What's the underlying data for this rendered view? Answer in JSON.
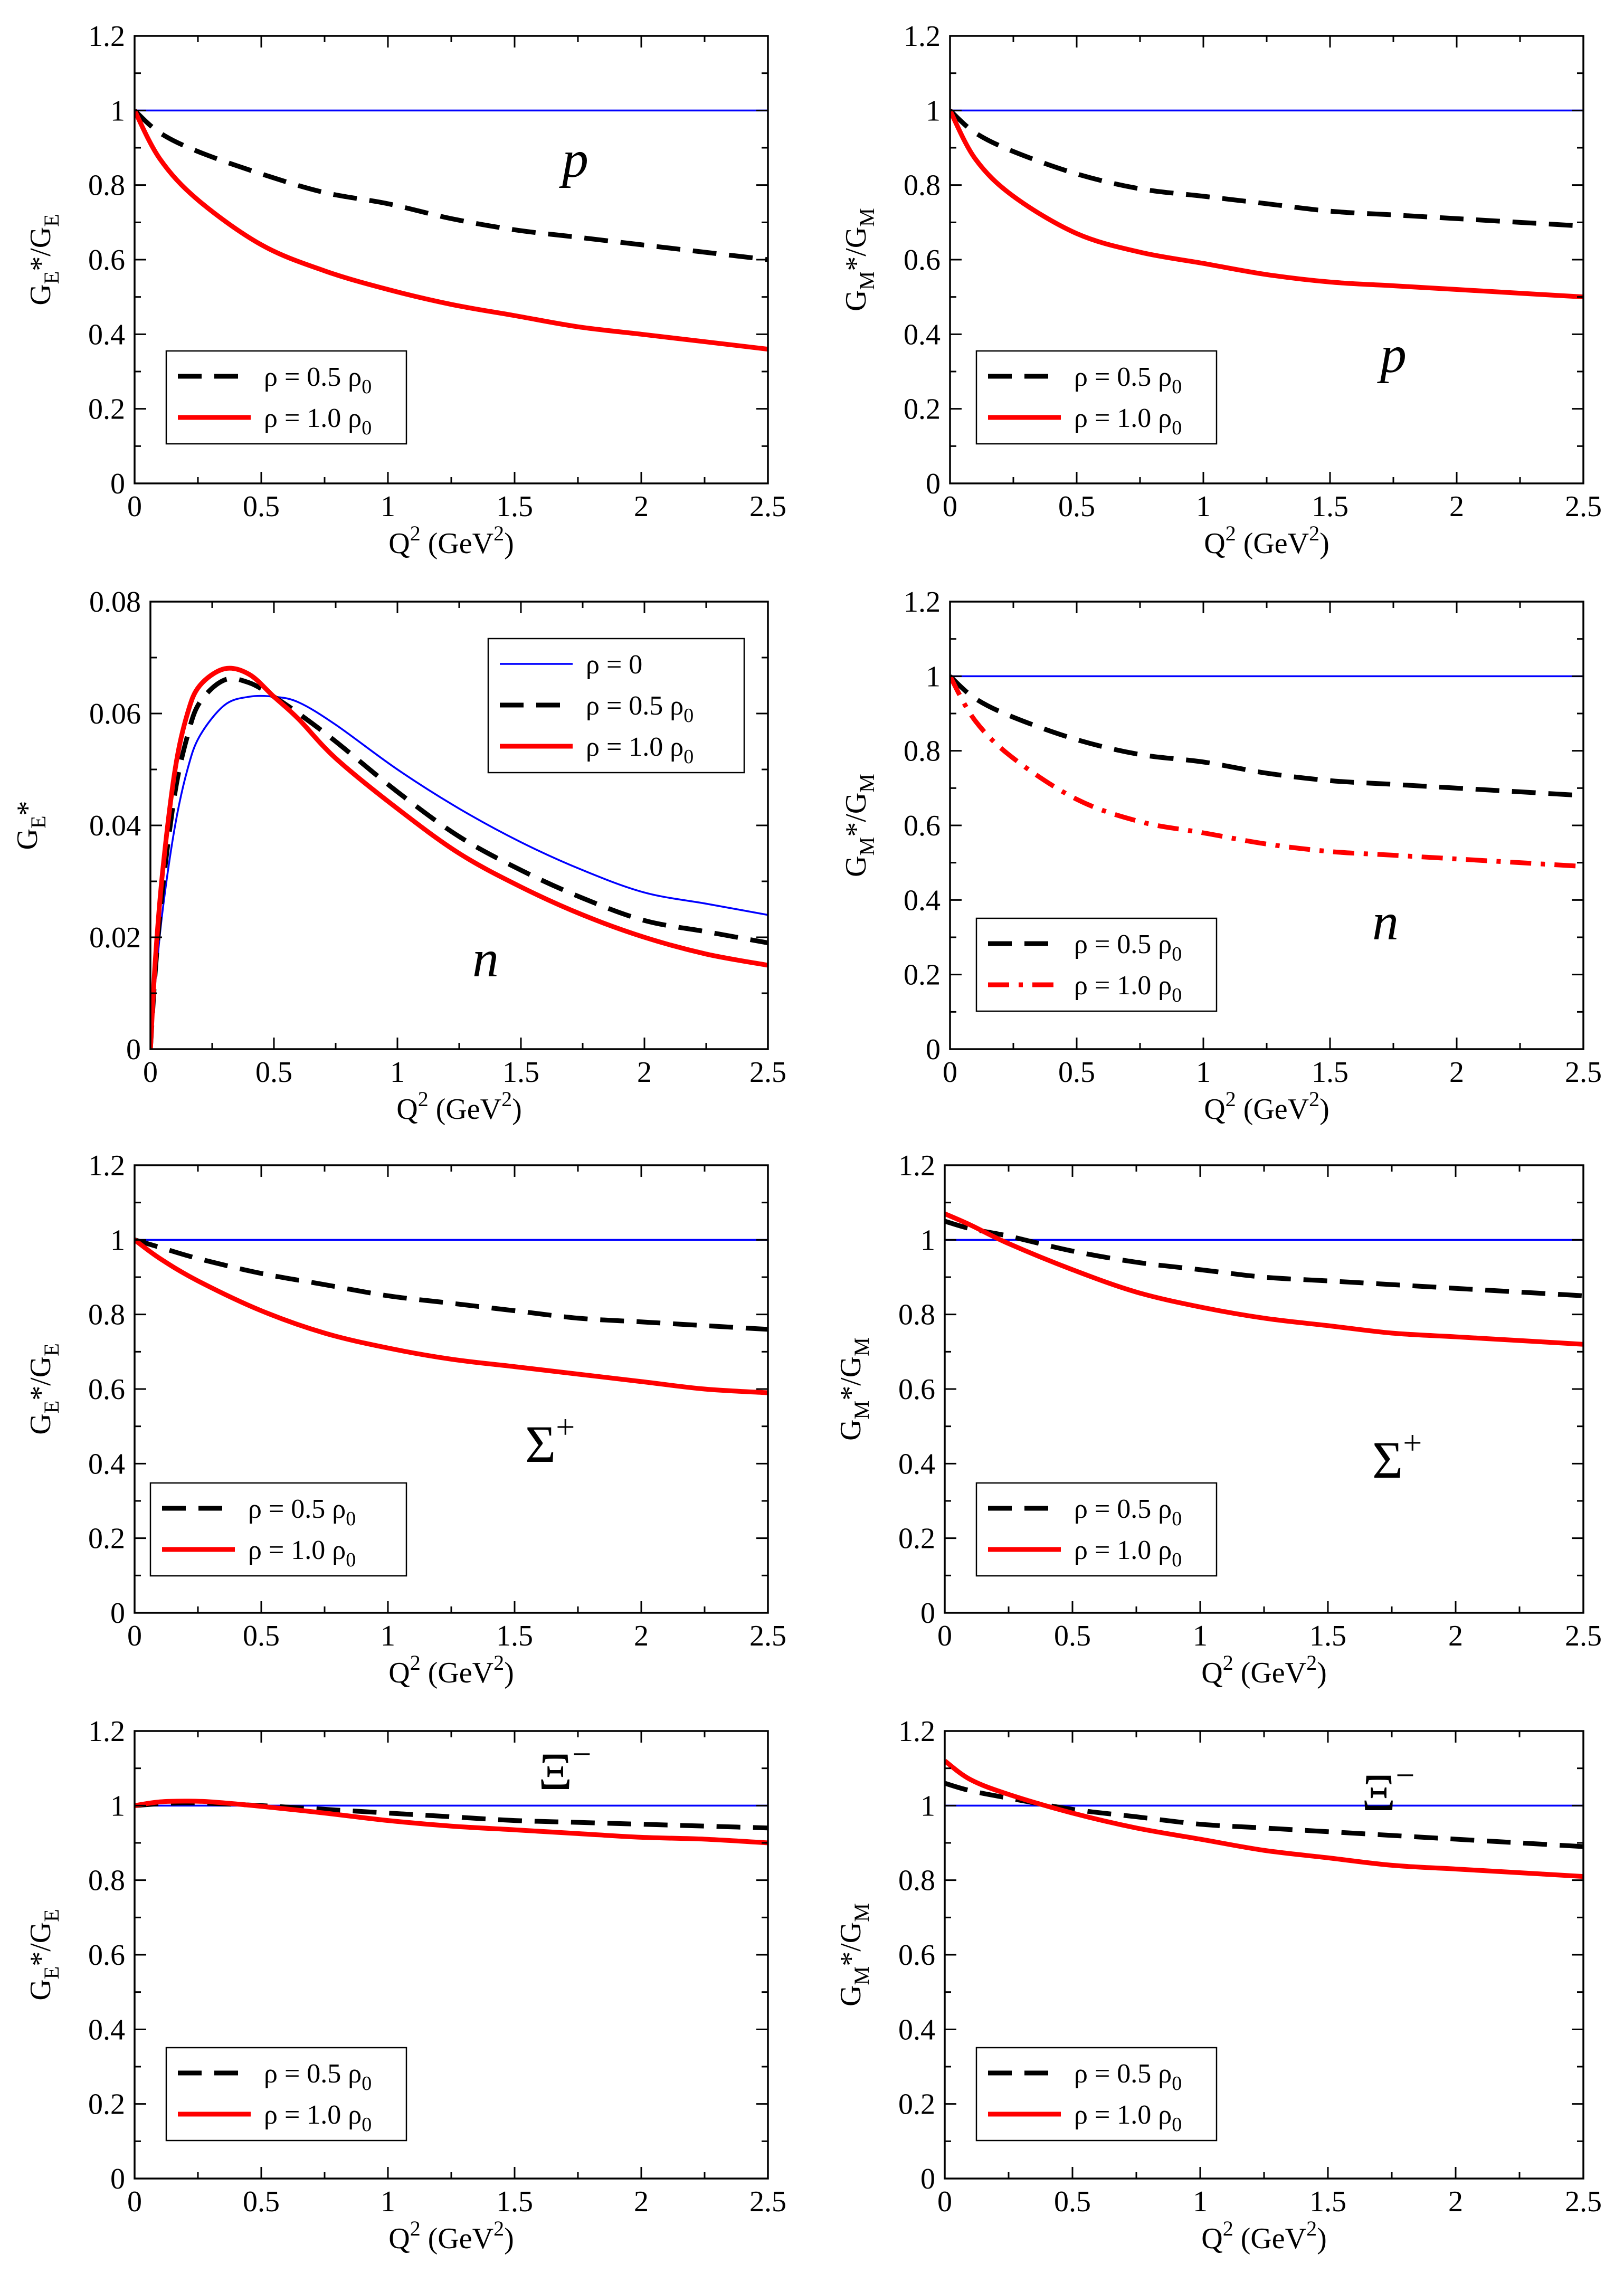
{
  "colors": {
    "blue": "#0000ff",
    "black": "#000000",
    "red": "#ff0000"
  },
  "chart_data": [
    {
      "type": "line",
      "panel": "p-GE",
      "ylabel": {
        "main": "G",
        "sub": "E",
        "mid": "*/G",
        "sub2": "E"
      },
      "xlabel": {
        "main": "Q",
        "sup": "2",
        "unit_open": " (GeV",
        "unit_sup": "2",
        "unit_close": ")"
      },
      "particle": {
        "text": "p",
        "sup": ""
      },
      "xlim": [
        0,
        2.5
      ],
      "ylim": [
        0,
        1.2
      ],
      "xticks": [
        "0",
        "0.5",
        "1",
        "1.5",
        "2",
        "2.5"
      ],
      "yticks": [
        "0",
        "0.2",
        "0.4",
        "0.6",
        "0.8",
        "1",
        "1.2"
      ],
      "legend": [
        {
          "label": "ρ = 0.5 ρ",
          "sub": "0",
          "series": 1
        },
        {
          "label": "ρ = 1.0 ρ",
          "sub": "0",
          "series": 2
        }
      ],
      "series": [
        {
          "style": "thin-blue",
          "x": [
            0,
            2.5
          ],
          "y": [
            1.0,
            1.0
          ]
        },
        {
          "style": "dashed-black",
          "x": [
            0,
            0.1,
            0.25,
            0.5,
            0.75,
            1.0,
            1.25,
            1.5,
            1.75,
            2.0,
            2.25,
            2.5
          ],
          "y": [
            1.0,
            0.94,
            0.89,
            0.83,
            0.78,
            0.75,
            0.71,
            0.68,
            0.66,
            0.64,
            0.62,
            0.6
          ]
        },
        {
          "style": "solid-red",
          "x": [
            0,
            0.1,
            0.25,
            0.5,
            0.75,
            1.0,
            1.25,
            1.5,
            1.75,
            2.0,
            2.25,
            2.5
          ],
          "y": [
            1.0,
            0.87,
            0.76,
            0.64,
            0.57,
            0.52,
            0.48,
            0.45,
            0.42,
            0.4,
            0.38,
            0.36
          ]
        }
      ]
    },
    {
      "type": "line",
      "panel": "p-GM",
      "ylabel": {
        "main": "G",
        "sub": "M",
        "mid": "*/G",
        "sub2": "M"
      },
      "xlabel": {
        "main": "Q",
        "sup": "2",
        "unit_open": " (GeV",
        "unit_sup": "2",
        "unit_close": ")"
      },
      "particle": {
        "text": "p",
        "sup": ""
      },
      "xlim": [
        0,
        2.5
      ],
      "ylim": [
        0,
        1.2
      ],
      "xticks": [
        "0",
        "0.5",
        "1",
        "1.5",
        "2",
        "2.5"
      ],
      "yticks": [
        "0",
        "0.2",
        "0.4",
        "0.6",
        "0.8",
        "1",
        "1.2"
      ],
      "legend": [
        {
          "label": "ρ = 0.5 ρ",
          "sub": "0",
          "series": 1
        },
        {
          "label": "ρ = 1.0 ρ",
          "sub": "0",
          "series": 2
        }
      ],
      "series": [
        {
          "style": "thin-blue",
          "x": [
            0,
            2.5
          ],
          "y": [
            1.0,
            1.0
          ]
        },
        {
          "style": "dashed-black",
          "x": [
            0,
            0.1,
            0.25,
            0.5,
            0.75,
            1.0,
            1.25,
            1.5,
            1.75,
            2.0,
            2.25,
            2.5
          ],
          "y": [
            1.0,
            0.94,
            0.89,
            0.83,
            0.79,
            0.77,
            0.75,
            0.73,
            0.72,
            0.71,
            0.7,
            0.69
          ]
        },
        {
          "style": "solid-red",
          "x": [
            0,
            0.1,
            0.25,
            0.5,
            0.75,
            1.0,
            1.25,
            1.5,
            1.75,
            2.0,
            2.25,
            2.5
          ],
          "y": [
            1.0,
            0.87,
            0.77,
            0.67,
            0.62,
            0.59,
            0.56,
            0.54,
            0.53,
            0.52,
            0.51,
            0.5
          ]
        }
      ]
    },
    {
      "type": "line",
      "panel": "n-GE",
      "ylabel": {
        "main": "G",
        "sub": "E",
        "mid": "*",
        "sub2": ""
      },
      "xlabel": {
        "main": "Q",
        "sup": "2",
        "unit_open": " (GeV",
        "unit_sup": "2",
        "unit_close": ")"
      },
      "particle": {
        "text": "n",
        "sup": ""
      },
      "xlim": [
        0,
        2.5
      ],
      "ylim": [
        0,
        0.08
      ],
      "xticks": [
        "0",
        "0.5",
        "1",
        "1.5",
        "2",
        "2.5"
      ],
      "yticks": [
        "0",
        "0.02",
        "0.04",
        "0.06",
        "0.08"
      ],
      "legend": [
        {
          "label": "ρ = 0",
          "sub": "",
          "series": 0
        },
        {
          "label": "ρ = 0.5 ρ",
          "sub": "0",
          "series": 1
        },
        {
          "label": "ρ = 1.0 ρ",
          "sub": "0",
          "series": 2
        }
      ],
      "series": [
        {
          "style": "thin-blue",
          "x": [
            0,
            0.02,
            0.05,
            0.1,
            0.15,
            0.2,
            0.3,
            0.4,
            0.5,
            0.6,
            0.75,
            1.0,
            1.25,
            1.5,
            1.75,
            2.0,
            2.25,
            2.5
          ],
          "y": [
            0,
            0.012,
            0.025,
            0.04,
            0.05,
            0.056,
            0.0615,
            0.063,
            0.063,
            0.062,
            0.058,
            0.05,
            0.043,
            0.037,
            0.032,
            0.028,
            0.026,
            0.024
          ]
        },
        {
          "style": "dashed-black",
          "x": [
            0,
            0.02,
            0.05,
            0.1,
            0.15,
            0.2,
            0.3,
            0.4,
            0.5,
            0.6,
            0.75,
            1.0,
            1.25,
            1.5,
            1.75,
            2.0,
            2.25,
            2.5
          ],
          "y": [
            0,
            0.014,
            0.029,
            0.046,
            0.056,
            0.062,
            0.066,
            0.0655,
            0.063,
            0.06,
            0.055,
            0.046,
            0.038,
            0.032,
            0.027,
            0.023,
            0.021,
            0.019
          ]
        },
        {
          "style": "solid-red",
          "x": [
            0,
            0.02,
            0.05,
            0.1,
            0.15,
            0.2,
            0.3,
            0.4,
            0.5,
            0.6,
            0.75,
            1.0,
            1.25,
            1.5,
            1.75,
            2.0,
            2.25,
            2.5
          ],
          "y": [
            0,
            0.016,
            0.032,
            0.05,
            0.06,
            0.065,
            0.068,
            0.067,
            0.063,
            0.059,
            0.052,
            0.043,
            0.035,
            0.029,
            0.024,
            0.02,
            0.017,
            0.015
          ]
        }
      ]
    },
    {
      "type": "line",
      "panel": "n-GM",
      "ylabel": {
        "main": "G",
        "sub": "M",
        "mid": "*/G",
        "sub2": "M"
      },
      "xlabel": {
        "main": "Q",
        "sup": "2",
        "unit_open": " (GeV",
        "unit_sup": "2",
        "unit_close": ")"
      },
      "particle": {
        "text": "n",
        "sup": ""
      },
      "xlim": [
        0,
        2.5
      ],
      "ylim": [
        0,
        1.2
      ],
      "xticks": [
        "0",
        "0.5",
        "1",
        "1.5",
        "2",
        "2.5"
      ],
      "yticks": [
        "0",
        "0.2",
        "0.4",
        "0.6",
        "0.8",
        "1",
        "1.2"
      ],
      "legend": [
        {
          "label": "ρ = 0.5 ρ",
          "sub": "0",
          "series": 1
        },
        {
          "label": "ρ = 1.0 ρ",
          "sub": "0",
          "series": 2
        }
      ],
      "series": [
        {
          "style": "thin-blue",
          "x": [
            0,
            2.5
          ],
          "y": [
            1.0,
            1.0
          ]
        },
        {
          "style": "dashed-black",
          "x": [
            0,
            0.1,
            0.25,
            0.5,
            0.75,
            1.0,
            1.25,
            1.5,
            1.75,
            2.0,
            2.25,
            2.5
          ],
          "y": [
            1.0,
            0.94,
            0.89,
            0.83,
            0.79,
            0.77,
            0.74,
            0.72,
            0.71,
            0.7,
            0.69,
            0.68
          ]
        },
        {
          "style": "dashdot-red",
          "x": [
            0,
            0.1,
            0.25,
            0.5,
            0.75,
            1.0,
            1.25,
            1.5,
            1.75,
            2.0,
            2.25,
            2.5
          ],
          "y": [
            1.0,
            0.88,
            0.78,
            0.67,
            0.61,
            0.58,
            0.55,
            0.53,
            0.52,
            0.51,
            0.5,
            0.49
          ]
        }
      ]
    },
    {
      "type": "line",
      "panel": "sigma-GE",
      "ylabel": {
        "main": "G",
        "sub": "E",
        "mid": "*/G",
        "sub2": "E"
      },
      "xlabel": {
        "main": "Q",
        "sup": "2",
        "unit_open": " (GeV",
        "unit_sup": "2",
        "unit_close": ")"
      },
      "particle": {
        "text": "Σ",
        "sup": "+"
      },
      "xlim": [
        0,
        2.5
      ],
      "ylim": [
        0,
        1.2
      ],
      "xticks": [
        "0",
        "0.5",
        "1",
        "1.5",
        "2",
        "2.5"
      ],
      "yticks": [
        "0",
        "0.2",
        "0.4",
        "0.6",
        "0.8",
        "1",
        "1.2"
      ],
      "legend": [
        {
          "label": "ρ = 0.5 ρ",
          "sub": "0",
          "series": 1
        },
        {
          "label": "ρ = 1.0 ρ",
          "sub": "0",
          "series": 2
        }
      ],
      "series": [
        {
          "style": "thin-blue",
          "x": [
            0,
            2.5
          ],
          "y": [
            1.0,
            1.0
          ]
        },
        {
          "style": "dashed-black",
          "x": [
            0,
            0.1,
            0.25,
            0.5,
            0.75,
            1.0,
            1.25,
            1.5,
            1.75,
            2.0,
            2.25,
            2.5
          ],
          "y": [
            1.0,
            0.98,
            0.95,
            0.91,
            0.88,
            0.85,
            0.83,
            0.81,
            0.79,
            0.78,
            0.77,
            0.76
          ]
        },
        {
          "style": "solid-red",
          "x": [
            0,
            0.1,
            0.25,
            0.5,
            0.75,
            1.0,
            1.25,
            1.5,
            1.75,
            2.0,
            2.25,
            2.5
          ],
          "y": [
            1.0,
            0.95,
            0.89,
            0.81,
            0.75,
            0.71,
            0.68,
            0.66,
            0.64,
            0.62,
            0.6,
            0.59
          ]
        }
      ]
    },
    {
      "type": "line",
      "panel": "sigma-GM",
      "ylabel": {
        "main": "G",
        "sub": "M",
        "mid": "*/G",
        "sub2": "M"
      },
      "xlabel": {
        "main": "Q",
        "sup": "2",
        "unit_open": " (GeV",
        "unit_sup": "2",
        "unit_close": ")"
      },
      "particle": {
        "text": "Σ",
        "sup": "+"
      },
      "xlim": [
        0,
        2.5
      ],
      "ylim": [
        0,
        1.2
      ],
      "xticks": [
        "0",
        "0.5",
        "1",
        "1.5",
        "2",
        "2.5"
      ],
      "yticks": [
        "0",
        "0.2",
        "0.4",
        "0.6",
        "0.8",
        "1",
        "1.2"
      ],
      "legend": [
        {
          "label": "ρ = 0.5 ρ",
          "sub": "0",
          "series": 1
        },
        {
          "label": "ρ = 1.0 ρ",
          "sub": "0",
          "series": 2
        }
      ],
      "series": [
        {
          "style": "thin-blue",
          "x": [
            0,
            2.5
          ],
          "y": [
            1.0,
            1.0
          ]
        },
        {
          "style": "dashed-black",
          "x": [
            0,
            0.1,
            0.25,
            0.5,
            0.75,
            1.0,
            1.25,
            1.5,
            1.75,
            2.0,
            2.25,
            2.5
          ],
          "y": [
            1.05,
            1.03,
            1.01,
            0.97,
            0.94,
            0.92,
            0.9,
            0.89,
            0.88,
            0.87,
            0.86,
            0.85
          ]
        },
        {
          "style": "solid-red",
          "x": [
            0,
            0.1,
            0.25,
            0.5,
            0.75,
            1.0,
            1.25,
            1.5,
            1.75,
            2.0,
            2.25,
            2.5
          ],
          "y": [
            1.07,
            1.04,
            0.99,
            0.92,
            0.86,
            0.82,
            0.79,
            0.77,
            0.75,
            0.74,
            0.73,
            0.72
          ]
        }
      ]
    },
    {
      "type": "line",
      "panel": "xi-GE",
      "ylabel": {
        "main": "G",
        "sub": "E",
        "mid": "*/G",
        "sub2": "E"
      },
      "xlabel": {
        "main": "Q",
        "sup": "2",
        "unit_open": " (GeV",
        "unit_sup": "2",
        "unit_close": ")"
      },
      "particle": {
        "text": "Ξ",
        "sup": "−"
      },
      "xlim": [
        0,
        2.5
      ],
      "ylim": [
        0,
        1.2
      ],
      "xticks": [
        "0",
        "0.5",
        "1",
        "1.5",
        "2",
        "2.5"
      ],
      "yticks": [
        "0",
        "0.2",
        "0.4",
        "0.6",
        "0.8",
        "1",
        "1.2"
      ],
      "legend": [
        {
          "label": "ρ = 0.5 ρ",
          "sub": "0",
          "series": 1
        },
        {
          "label": "ρ = 1.0 ρ",
          "sub": "0",
          "series": 2
        }
      ],
      "series": [
        {
          "style": "thin-blue",
          "x": [
            0,
            2.5
          ],
          "y": [
            1.0,
            1.0
          ]
        },
        {
          "style": "dashed-black",
          "x": [
            0,
            0.1,
            0.2,
            0.3,
            0.5,
            0.75,
            1.0,
            1.25,
            1.5,
            1.75,
            2.0,
            2.25,
            2.5
          ],
          "y": [
            1.0,
            1.005,
            1.007,
            1.006,
            1.0,
            0.99,
            0.98,
            0.97,
            0.96,
            0.955,
            0.95,
            0.945,
            0.94
          ]
        },
        {
          "style": "solid-red",
          "x": [
            0,
            0.1,
            0.2,
            0.3,
            0.5,
            0.75,
            1.0,
            1.25,
            1.5,
            1.75,
            2.0,
            2.25,
            2.5
          ],
          "y": [
            1.0,
            1.01,
            1.012,
            1.01,
            0.998,
            0.98,
            0.96,
            0.945,
            0.935,
            0.925,
            0.915,
            0.91,
            0.9
          ]
        }
      ]
    },
    {
      "type": "line",
      "panel": "xi-GM",
      "ylabel": {
        "main": "G",
        "sub": "M",
        "mid": "*/G",
        "sub2": "M"
      },
      "xlabel": {
        "main": "Q",
        "sup": "2",
        "unit_open": " (GeV",
        "unit_sup": "2",
        "unit_close": ")"
      },
      "particle": {
        "text": "Ξ",
        "sup": "−"
      },
      "xlim": [
        0,
        2.5
      ],
      "ylim": [
        0,
        1.2
      ],
      "xticks": [
        "0",
        "0.5",
        "1",
        "1.5",
        "2",
        "2.5"
      ],
      "yticks": [
        "0",
        "0.2",
        "0.4",
        "0.6",
        "0.8",
        "1",
        "1.2"
      ],
      "legend": [
        {
          "label": "ρ = 0.5 ρ",
          "sub": "0",
          "series": 1
        },
        {
          "label": "ρ = 1.0 ρ",
          "sub": "0",
          "series": 2
        }
      ],
      "series": [
        {
          "style": "thin-blue",
          "x": [
            0,
            2.5
          ],
          "y": [
            1.0,
            1.0
          ]
        },
        {
          "style": "dashed-black",
          "x": [
            0,
            0.1,
            0.25,
            0.5,
            0.75,
            1.0,
            1.25,
            1.5,
            1.75,
            2.0,
            2.25,
            2.5
          ],
          "y": [
            1.06,
            1.04,
            1.02,
            0.99,
            0.97,
            0.95,
            0.94,
            0.93,
            0.92,
            0.91,
            0.9,
            0.89
          ]
        },
        {
          "style": "solid-red",
          "x": [
            0,
            0.1,
            0.25,
            0.5,
            0.75,
            1.0,
            1.25,
            1.5,
            1.75,
            2.0,
            2.25,
            2.5
          ],
          "y": [
            1.12,
            1.07,
            1.03,
            0.98,
            0.94,
            0.91,
            0.88,
            0.86,
            0.84,
            0.83,
            0.82,
            0.81
          ]
        }
      ]
    }
  ]
}
